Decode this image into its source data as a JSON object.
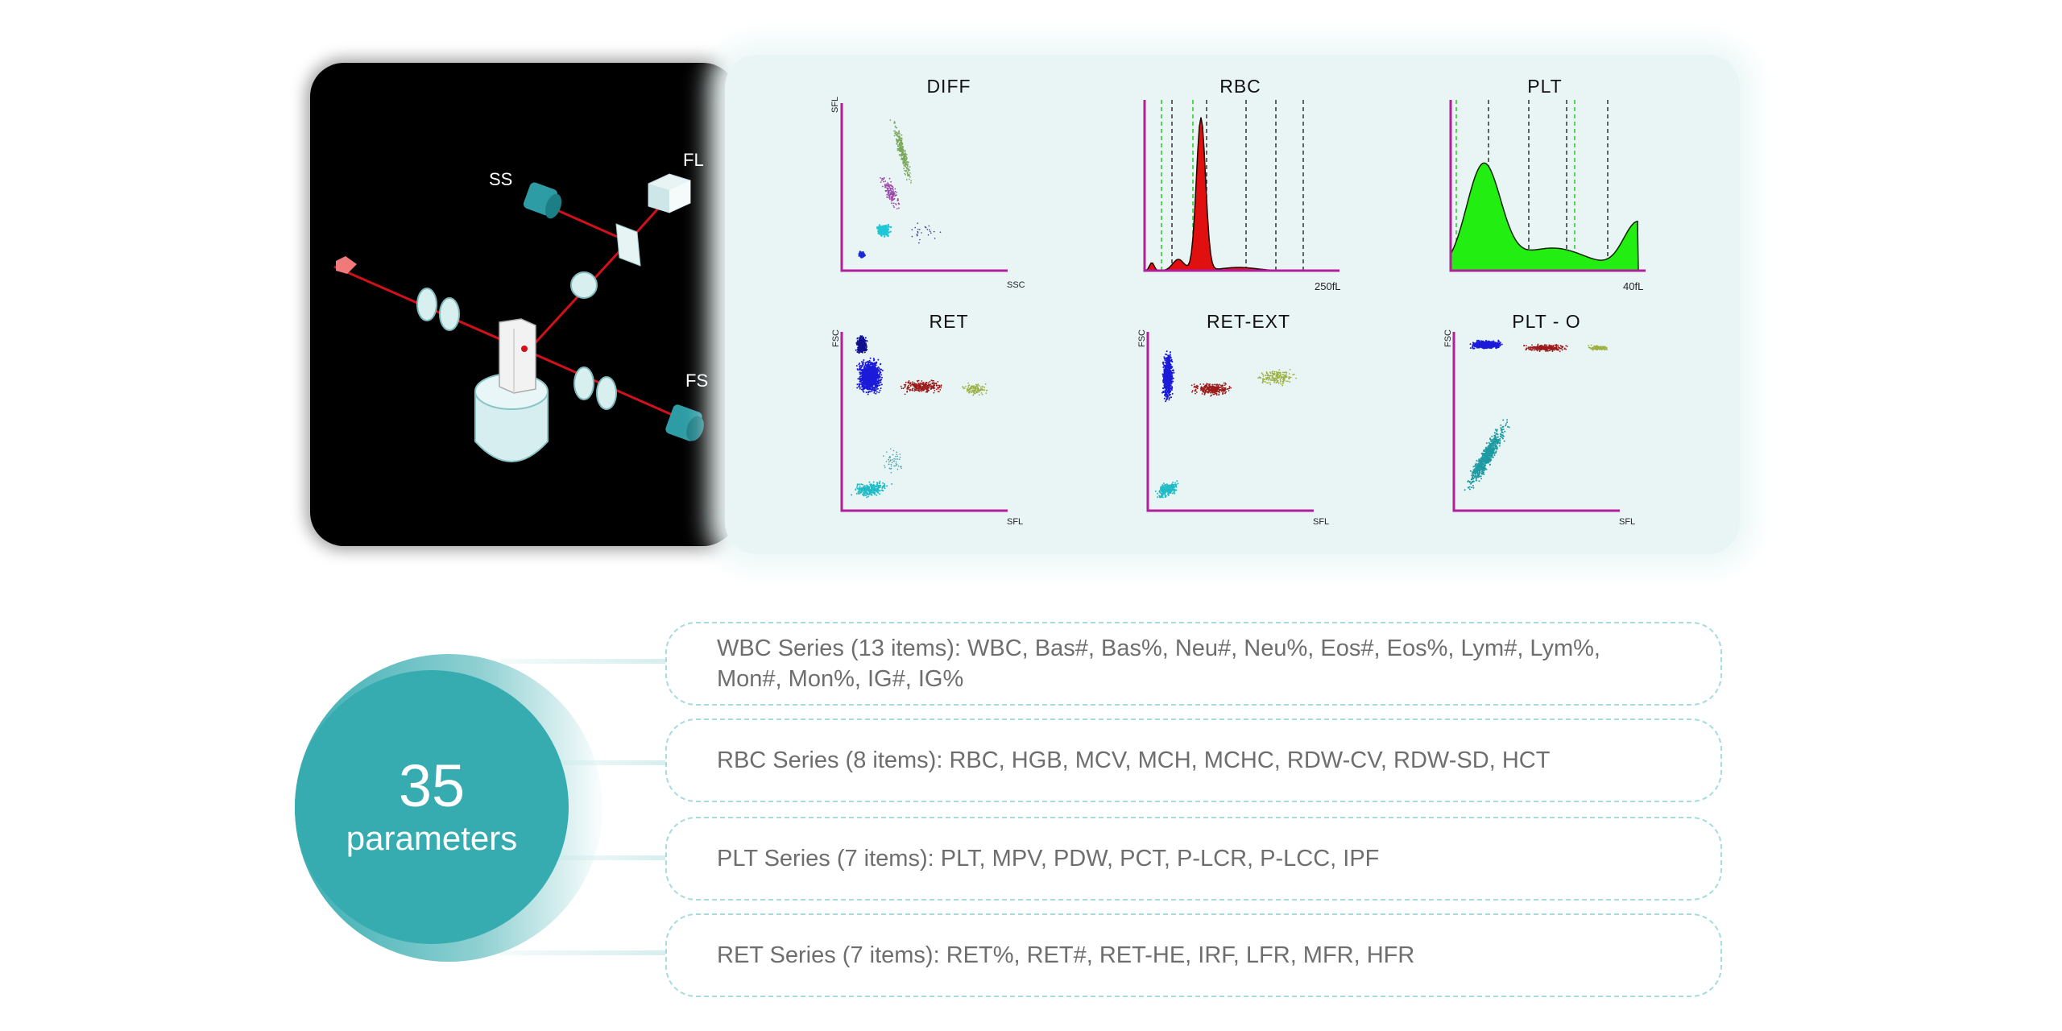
{
  "optics": {
    "labels": {
      "ss": "SS",
      "fl": "FL",
      "fs": "FS"
    }
  },
  "graphs": {
    "diff": {
      "title": "DIFF",
      "ylabel": "SFL",
      "xlabel": "SSC"
    },
    "rbc": {
      "title": "RBC",
      "xlabel": "250fL"
    },
    "plt": {
      "title": "PLT",
      "xlabel": "40fL"
    },
    "ret": {
      "title": "RET",
      "ylabel": "FSC",
      "xlabel": "SFL"
    },
    "ret_ext": {
      "title": "RET-EXT",
      "ylabel": "FSC",
      "xlabel": "SFL"
    },
    "plt_o": {
      "title": "PLT - O",
      "ylabel": "FSC",
      "xlabel": "SFL"
    }
  },
  "parameters": {
    "count": "35",
    "unit": "parameters",
    "series": [
      {
        "text": "WBC Series (13 items): WBC, Bas#, Bas%, Neu#, Neu%, Eos#, Eos%, Lym#, Lym%, Mon#, Mon%, IG#, IG%"
      },
      {
        "text": "RBC Series (8 items): RBC, HGB, MCV, MCH, MCHC, RDW-CV, RDW-SD, HCT"
      },
      {
        "text": "PLT Series (7 items): PLT, MPV, PDW, PCT, P-LCR, P-LCC, IPF"
      },
      {
        "text": "RET Series (7 items): RET%, RET#, RET-HE, IRF, LFR, MFR, HFR"
      }
    ]
  },
  "colors": {
    "teal": "#36acb1",
    "axis": "#b21f9c",
    "rbc_fill": "#e01010",
    "plt_fill": "#22ee11"
  }
}
